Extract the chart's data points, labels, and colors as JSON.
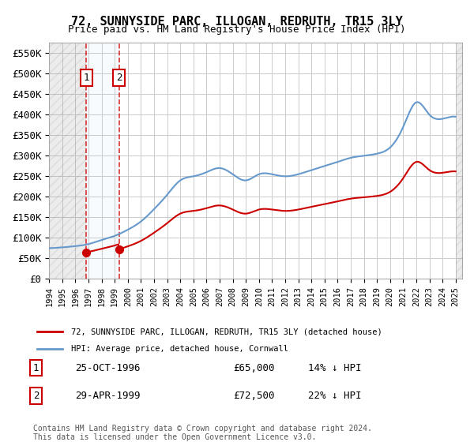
{
  "title": "72, SUNNYSIDE PARC, ILLOGAN, REDRUTH, TR15 3LY",
  "subtitle": "Price paid vs. HM Land Registry's House Price Index (HPI)",
  "ylim": [
    0,
    575000
  ],
  "yticks": [
    0,
    50000,
    100000,
    150000,
    200000,
    250000,
    300000,
    350000,
    400000,
    450000,
    500000,
    550000
  ],
  "ytick_labels": [
    "£0",
    "£50K",
    "£100K",
    "£150K",
    "£200K",
    "£250K",
    "£300K",
    "£350K",
    "£400K",
    "£450K",
    "£500K",
    "£550K"
  ],
  "xlim_start": 1994.0,
  "xlim_end": 2025.5,
  "transaction1_date": 1996.82,
  "transaction1_price": 65000,
  "transaction1_label": "1",
  "transaction1_info": "25-OCT-1996    £65,000    14% ↓ HPI",
  "transaction2_date": 1999.33,
  "transaction2_price": 72500,
  "transaction2_label": "2",
  "transaction2_info": "29-APR-1999    £72,500    22% ↓ HPI",
  "legend_line1": "72, SUNNYSIDE PARC, ILLOGAN, REDRUTH, TR15 3LY (detached house)",
  "legend_line2": "HPI: Average price, detached house, Cornwall",
  "footer": "Contains HM Land Registry data © Crown copyright and database right 2024.\nThis data is licensed under the Open Government Licence v3.0.",
  "hpi_color": "#6699cc",
  "price_color": "#cc0000",
  "grid_color": "#cccccc",
  "hatch_color": "#d0d0d0",
  "background_color": "#ffffff"
}
